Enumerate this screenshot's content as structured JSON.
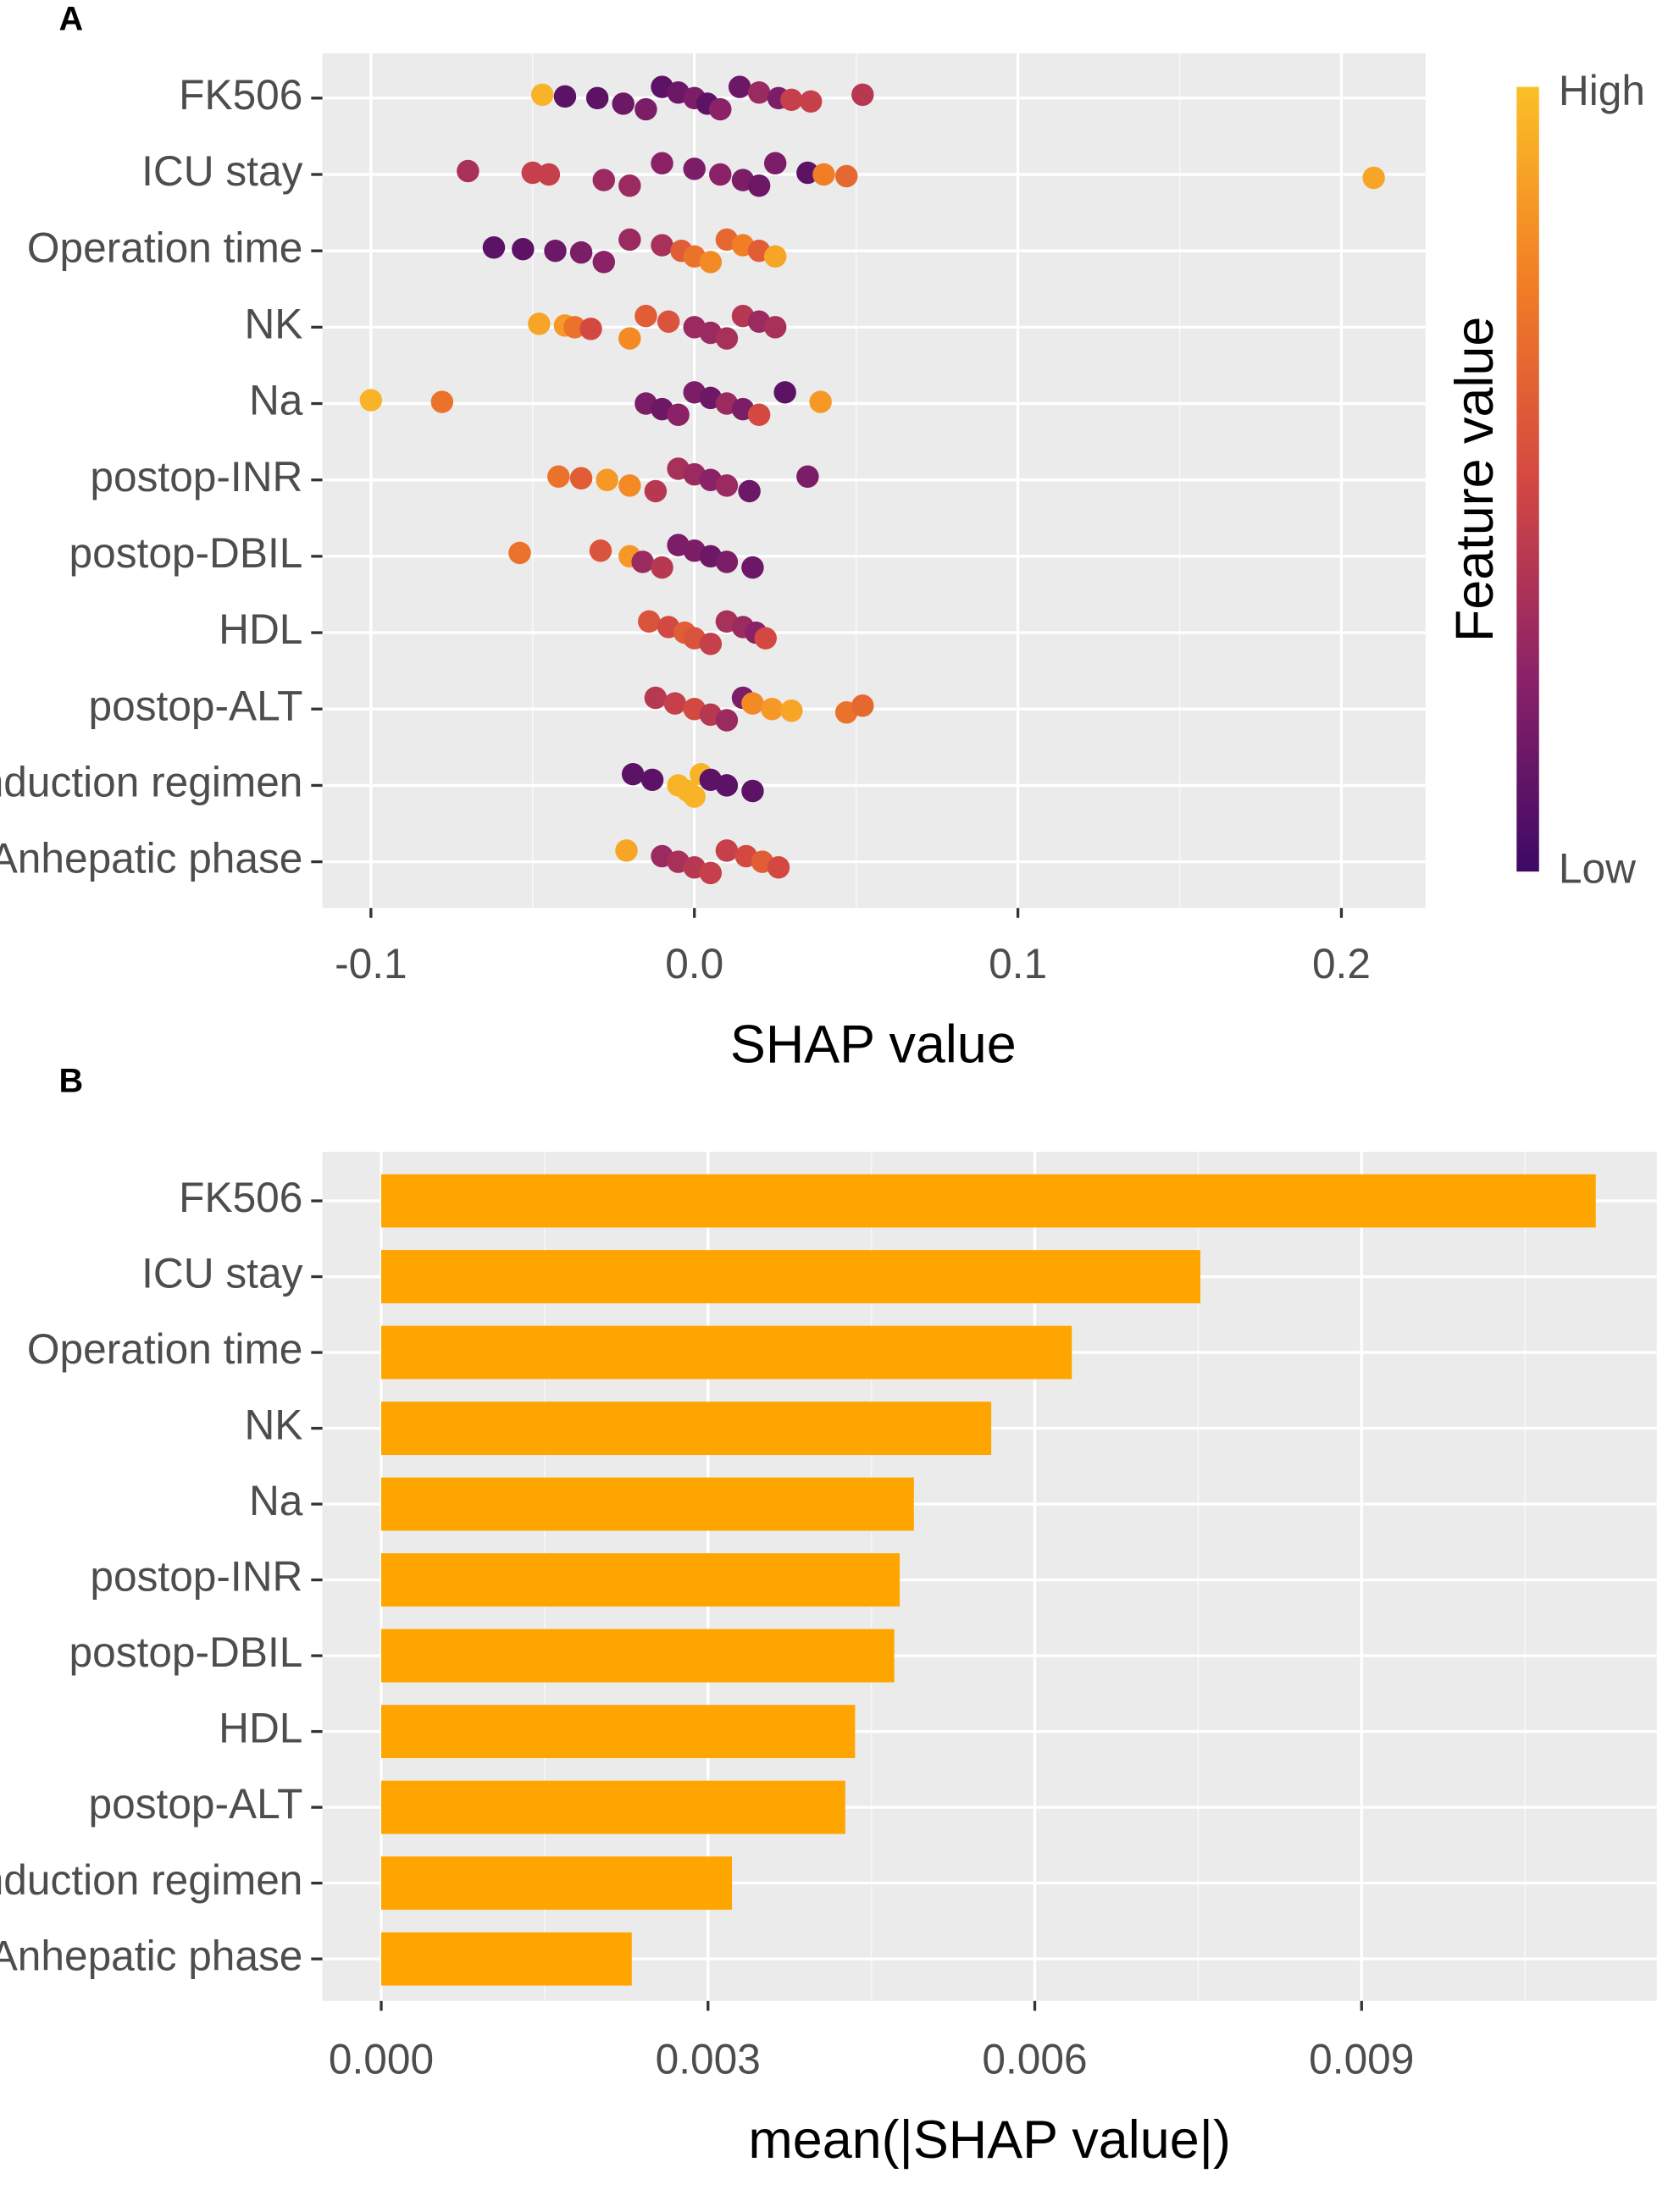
{
  "chart_data": [
    {
      "type": "beeswarm",
      "panel_label": "A",
      "x_label": "SHAP value",
      "xlim": [
        -0.115,
        0.226
      ],
      "xticks": [
        -0.1,
        {
          "value": 0,
          "label": "0.0"
        },
        0.1,
        0.2
      ],
      "grid": true,
      "colorbar": {
        "title": "Feature value",
        "low_label": "Low",
        "high_label": "High",
        "colors": [
          "#3d0965",
          "#8b2268",
          "#d44842",
          "#f17d25",
          "#fbc026"
        ]
      },
      "series": [
        {
          "name": "FK506",
          "x": [
            -0.047,
            -0.04,
            -0.03,
            -0.022,
            -0.015,
            -0.01,
            -0.005,
            0,
            0.004,
            0.008,
            0.014,
            0.02,
            0.026,
            0.03,
            0.036,
            0.052
          ],
          "feature_value": [
            0.95,
            0.1,
            0.1,
            0.15,
            0.2,
            0.1,
            0.15,
            0.2,
            0.1,
            0.25,
            0.15,
            0.3,
            0.2,
            0.45,
            0.45,
            0.4
          ]
        },
        {
          "name": "ICU stay",
          "x": [
            -0.07,
            -0.05,
            -0.045,
            -0.028,
            -0.02,
            -0.01,
            0,
            0.008,
            0.015,
            0.02,
            0.025,
            0.035,
            0.04,
            0.047,
            0.21
          ],
          "feature_value": [
            0.35,
            0.45,
            0.45,
            0.3,
            0.3,
            0.25,
            0.2,
            0.25,
            0.2,
            0.15,
            0.2,
            0.1,
            0.75,
            0.65,
            0.9
          ]
        },
        {
          "name": "Operation time",
          "x": [
            -0.062,
            -0.053,
            -0.043,
            -0.035,
            -0.028,
            -0.02,
            -0.01,
            -0.004,
            0,
            0.005,
            0.01,
            0.015,
            0.02,
            0.025
          ],
          "feature_value": [
            0.1,
            0.1,
            0.15,
            0.2,
            0.25,
            0.3,
            0.35,
            0.6,
            0.7,
            0.8,
            0.65,
            0.75,
            0.6,
            0.9
          ]
        },
        {
          "name": "NK",
          "x": [
            -0.048,
            -0.04,
            -0.037,
            -0.032,
            -0.02,
            -0.015,
            -0.008,
            0,
            0.005,
            0.01,
            0.015,
            0.02,
            0.025
          ],
          "feature_value": [
            0.9,
            0.85,
            0.7,
            0.5,
            0.8,
            0.6,
            0.55,
            0.3,
            0.3,
            0.35,
            0.4,
            0.3,
            0.35
          ]
        },
        {
          "name": "Na",
          "x": [
            -0.1,
            -0.078,
            -0.015,
            -0.01,
            -0.005,
            0,
            0.005,
            0.01,
            0.015,
            0.02,
            0.028,
            0.039
          ],
          "feature_value": [
            0.95,
            0.7,
            0.2,
            0.15,
            0.25,
            0.2,
            0.15,
            0.3,
            0.2,
            0.5,
            0.1,
            0.85
          ]
        },
        {
          "name": "postop-INR",
          "x": [
            -0.042,
            -0.035,
            -0.027,
            -0.02,
            -0.012,
            -0.005,
            0,
            0.005,
            0.01,
            0.017,
            0.035
          ],
          "feature_value": [
            0.7,
            0.6,
            0.85,
            0.8,
            0.4,
            0.35,
            0.3,
            0.25,
            0.3,
            0.15,
            0.2
          ]
        },
        {
          "name": "postop-DBIL",
          "x": [
            -0.054,
            -0.029,
            -0.02,
            -0.016,
            -0.01,
            -0.005,
            0,
            0.005,
            0.01,
            0.018
          ],
          "feature_value": [
            0.7,
            0.55,
            0.85,
            0.3,
            0.4,
            0.2,
            0.2,
            0.15,
            0.2,
            0.15
          ]
        },
        {
          "name": "HDL",
          "x": [
            -0.014,
            -0.008,
            -0.003,
            0,
            0.005,
            0.01,
            0.015,
            0.019,
            0.022
          ],
          "feature_value": [
            0.55,
            0.5,
            0.6,
            0.55,
            0.45,
            0.35,
            0.3,
            0.25,
            0.5
          ]
        },
        {
          "name": "postop-ALT",
          "x": [
            -0.012,
            -0.006,
            0,
            0.005,
            0.01,
            0.015,
            0.018,
            0.024,
            0.03,
            0.047,
            0.052
          ],
          "feature_value": [
            0.4,
            0.45,
            0.5,
            0.4,
            0.3,
            0.2,
            0.8,
            0.85,
            0.9,
            0.7,
            0.65
          ]
        },
        {
          "name": "Induction regimen",
          "x": [
            -0.019,
            -0.013,
            -0.005,
            -0.002,
            0,
            0.002,
            0.005,
            0.01,
            0.018
          ],
          "feature_value": [
            0.1,
            0.1,
            0.95,
            0.95,
            0.95,
            0.95,
            0.1,
            0.1,
            0.1
          ]
        },
        {
          "name": "Anhepatic phase",
          "x": [
            -0.021,
            -0.01,
            -0.005,
            0,
            0.005,
            0.01,
            0.016,
            0.021,
            0.026
          ],
          "feature_value": [
            0.9,
            0.3,
            0.35,
            0.4,
            0.45,
            0.45,
            0.5,
            0.6,
            0.5
          ]
        }
      ]
    },
    {
      "type": "hbar",
      "panel_label": "B",
      "x_label": "mean(|SHAP value|)",
      "categories": [
        "FK506",
        "ICU stay",
        "Operation time",
        "NK",
        "Na",
        "postop-INR",
        "postop-DBIL",
        "HDL",
        "postop-ALT",
        "Induction regimen",
        "Anhepatic phase"
      ],
      "values": [
        0.01115,
        0.00752,
        0.00634,
        0.0056,
        0.00489,
        0.00476,
        0.00471,
        0.00435,
        0.00426,
        0.00322,
        0.0023
      ],
      "color": "#ffa500",
      "xlim": [
        -0.00054,
        0.01171
      ],
      "xticks": [
        {
          "value": 0,
          "label": "0.000"
        },
        {
          "value": 0.003,
          "label": "0.003"
        },
        {
          "value": 0.006,
          "label": "0.006"
        },
        {
          "value": 0.009,
          "label": "0.009"
        }
      ],
      "grid": true
    }
  ]
}
